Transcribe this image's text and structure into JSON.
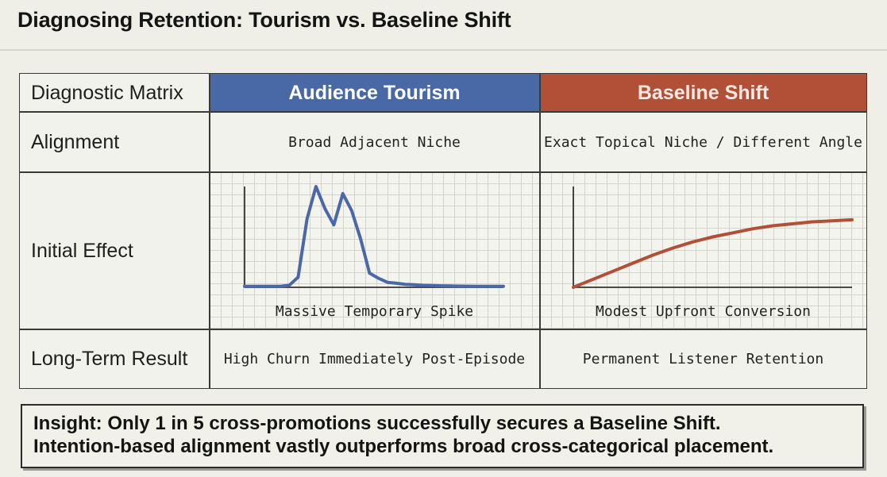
{
  "title": "Diagnosing Retention: Tourism vs. Baseline Shift",
  "matrix": {
    "header": {
      "corner": "Diagnostic Matrix",
      "tourism": "Audience Tourism",
      "shift": "Baseline Shift"
    },
    "rows": [
      {
        "label": "Alignment",
        "tourism": "Broad Adjacent Niche",
        "shift": "Exact Topical Niche / Different Angle"
      },
      {
        "label": "Initial Effect",
        "tourism": "Massive Temporary Spike",
        "shift": "Modest Upfront Conversion"
      },
      {
        "label": "Long-Term Result",
        "tourism": "High Churn Immediately Post-Episode",
        "shift": "Permanent Listener Retention"
      }
    ]
  },
  "colors": {
    "tourism": "#4968a6",
    "shift": "#b24f37",
    "tourism_line": "#4a67a8",
    "shift_line": "#b24f37"
  },
  "chart_data": [
    {
      "type": "line",
      "series": [
        {
          "values": [
            1,
            1,
            1,
            1,
            1,
            2,
            10,
            68,
            100,
            78,
            62,
            93,
            76,
            48,
            14,
            9,
            5,
            4,
            3,
            2.5,
            2,
            1.8,
            1.5,
            1.3,
            1.2,
            1.1,
            1,
            1,
            1,
            1
          ]
        }
      ],
      "grid": true,
      "xlabel": "",
      "ylabel": ""
    },
    {
      "type": "line",
      "series": [
        {
          "values": [
            0,
            8,
            16,
            24,
            32,
            39,
            45,
            50,
            54,
            58,
            61,
            63,
            65,
            66,
            67
          ]
        }
      ],
      "grid": true,
      "xlabel": "",
      "ylabel": ""
    }
  ],
  "insight": {
    "line1": "Insight: Only 1 in 5 cross-promotions successfully secures a Baseline Shift.",
    "line2": "Intention-based alignment vastly outperforms broad cross-categorical placement."
  }
}
